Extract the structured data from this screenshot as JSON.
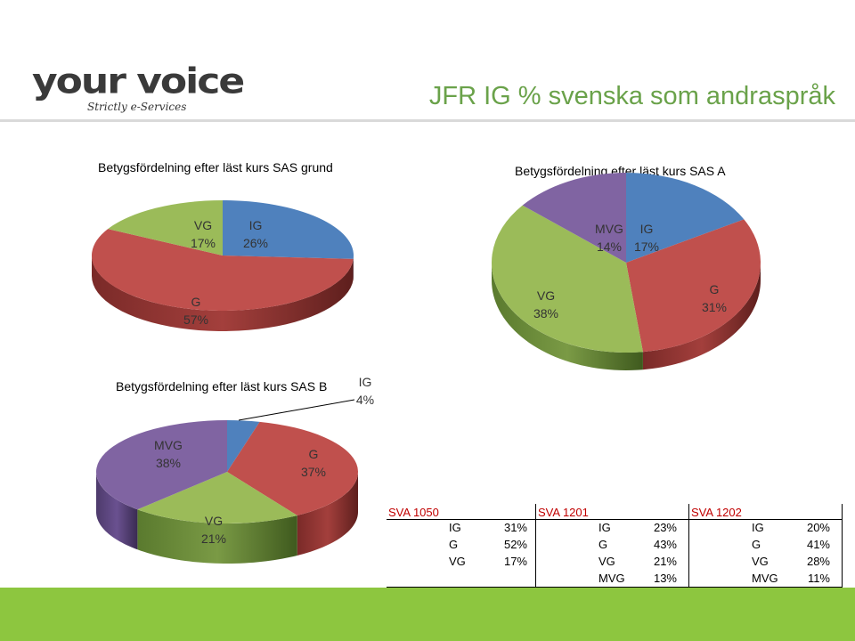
{
  "slide": {
    "title": "JFR IG % svenska som andraspråk",
    "logo_main": "your voice",
    "logo_sub": "Strictly e-Services"
  },
  "colors": {
    "IG": "#4f81bd",
    "G": "#c0504d",
    "VG": "#9bbb59",
    "MVG": "#8064a2",
    "accent": "#8dc63f"
  },
  "chart_data": [
    {
      "type": "pie",
      "title": "Betygsfördelning efter läst kurs SAS grund",
      "slices": [
        {
          "name": "IG",
          "value": 26,
          "label": "26%"
        },
        {
          "name": "G",
          "value": 57,
          "label": "57%"
        },
        {
          "name": "VG",
          "value": 17,
          "label": "17%"
        }
      ]
    },
    {
      "type": "pie",
      "title": "Betygsfördelning efter läst kurs SAS A",
      "slices": [
        {
          "name": "IG",
          "value": 17,
          "label": "17%"
        },
        {
          "name": "G",
          "value": 31,
          "label": "31%"
        },
        {
          "name": "VG",
          "value": 38,
          "label": "38%"
        },
        {
          "name": "MVG",
          "value": 14,
          "label": "14%"
        }
      ]
    },
    {
      "type": "pie",
      "title": "Betygsfördelning efter läst kurs SAS B",
      "slices": [
        {
          "name": "IG",
          "value": 4,
          "label": "4%"
        },
        {
          "name": "G",
          "value": 37,
          "label": "37%"
        },
        {
          "name": "VG",
          "value": 21,
          "label": "21%"
        },
        {
          "name": "MVG",
          "value": 38,
          "label": "38%"
        }
      ]
    }
  ],
  "table": {
    "columns": [
      {
        "header": "SVA 1050",
        "rows": [
          [
            "IG",
            "31%"
          ],
          [
            "G",
            "52%"
          ],
          [
            "VG",
            "17%"
          ]
        ]
      },
      {
        "header": "SVA 1201",
        "rows": [
          [
            "IG",
            "23%"
          ],
          [
            "G",
            "43%"
          ],
          [
            "VG",
            "21%"
          ],
          [
            "MVG",
            "13%"
          ]
        ]
      },
      {
        "header": "SVA 1202",
        "rows": [
          [
            "IG",
            "20%"
          ],
          [
            "G",
            "41%"
          ],
          [
            "VG",
            "28%"
          ],
          [
            "MVG",
            "11%"
          ]
        ]
      }
    ]
  }
}
